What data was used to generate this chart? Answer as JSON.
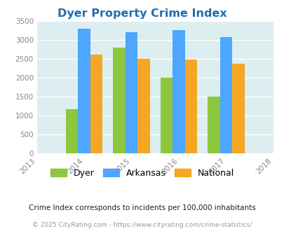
{
  "title": "Dyer Property Crime Index",
  "years": [
    2013,
    2014,
    2015,
    2016,
    2017,
    2018
  ],
  "bar_years": [
    2014,
    2015,
    2016,
    2017
  ],
  "dyer": [
    1175,
    2800,
    2000,
    1500
  ],
  "arkansas": [
    3300,
    3200,
    3250,
    3075
  ],
  "national": [
    2600,
    2500,
    2475,
    2375
  ],
  "color_dyer": "#8dc63f",
  "color_arkansas": "#4da6ff",
  "color_national": "#f5a623",
  "ylim": [
    0,
    3500
  ],
  "yticks": [
    0,
    500,
    1000,
    1500,
    2000,
    2500,
    3000,
    3500
  ],
  "bg_color": "#ddeef0",
  "title_color": "#1a6fb5",
  "legend_labels": [
    "Dyer",
    "Arkansas",
    "National"
  ],
  "footnote1": "Crime Index corresponds to incidents per 100,000 inhabitants",
  "footnote2": "© 2025 CityRating.com - https://www.cityrating.com/crime-statistics/",
  "footnote1_color": "#222222",
  "footnote2_color": "#999999"
}
